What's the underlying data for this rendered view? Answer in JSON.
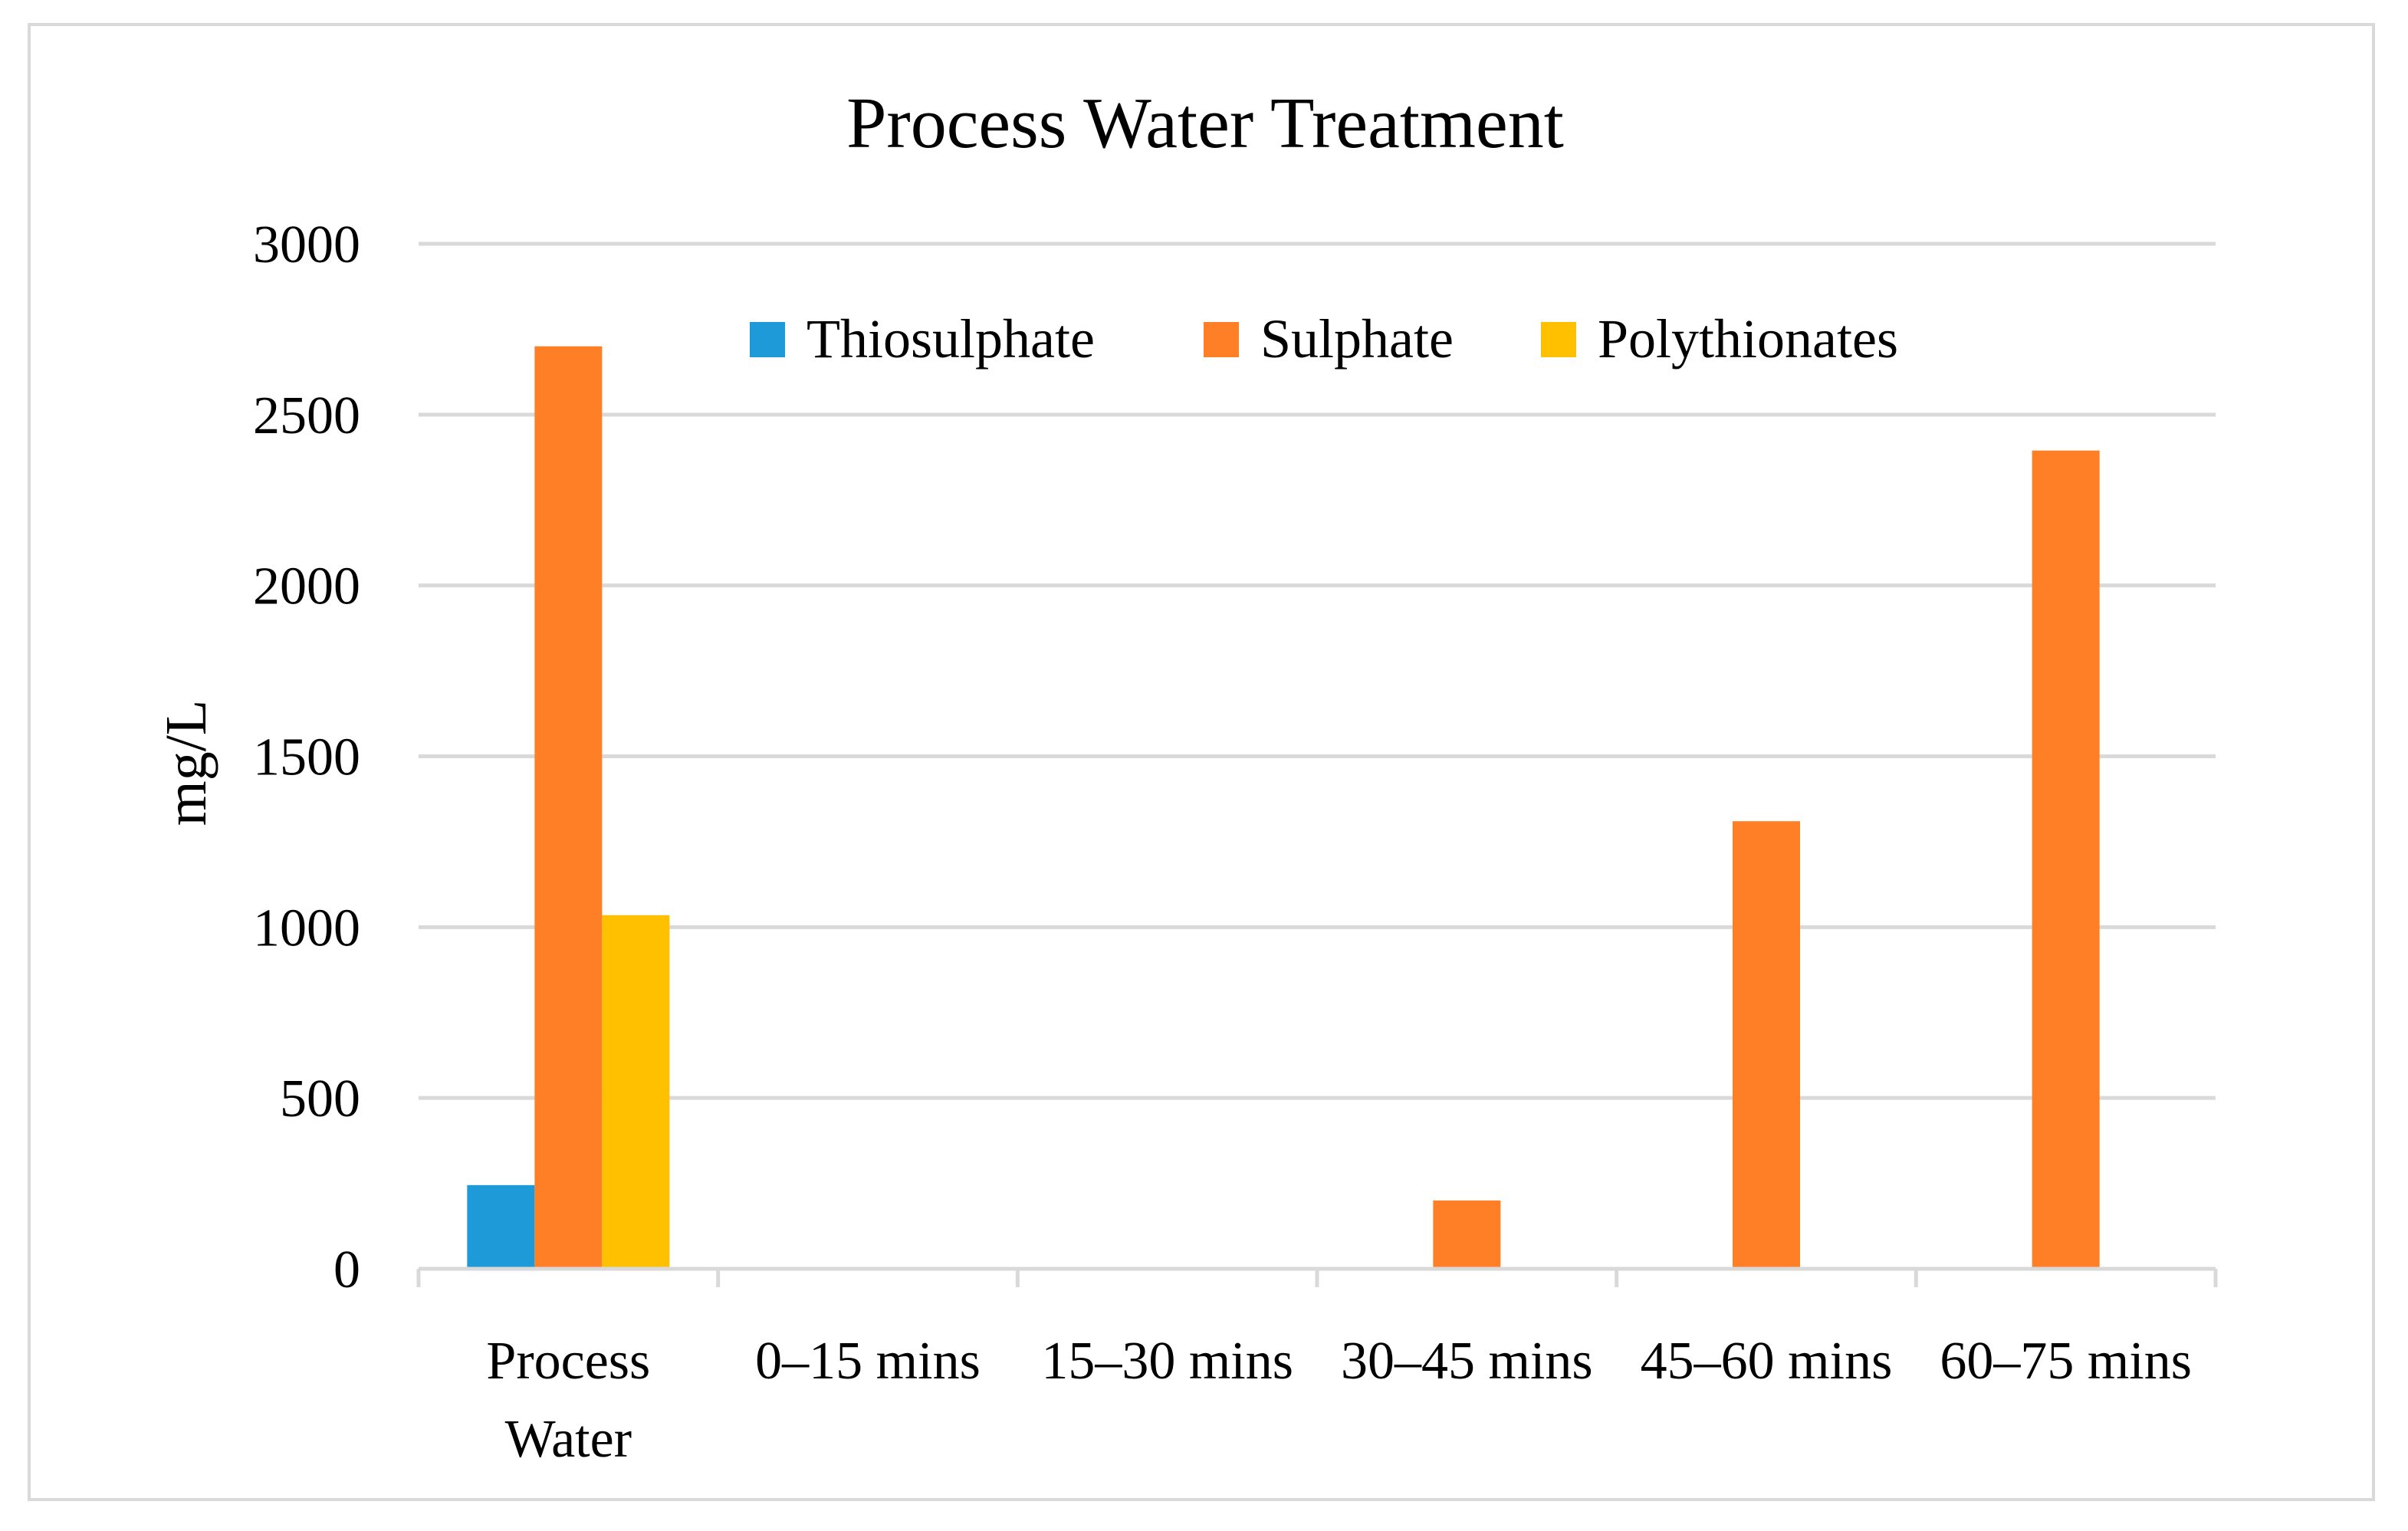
{
  "chart_data": {
    "type": "bar",
    "title": "Process Water Treatment",
    "xlabel": "",
    "ylabel": "mg/L",
    "ylim": [
      0,
      3000
    ],
    "yticks": [
      0,
      500,
      1000,
      1500,
      2000,
      2500,
      3000
    ],
    "grid": true,
    "legend_position": "top-right",
    "categories": [
      [
        "Process",
        "Water"
      ],
      [
        "0–15 mins"
      ],
      [
        "15–30 mins"
      ],
      [
        "30–45 mins"
      ],
      [
        "45–60 mins"
      ],
      [
        "60–75 mins"
      ]
    ],
    "series": [
      {
        "name": "Thiosulphate",
        "color": "#1f9ad9",
        "values": [
          245,
          0,
          0,
          0,
          0,
          0
        ]
      },
      {
        "name": "Sulphate",
        "color": "#ff7f27",
        "values": [
          2700,
          0,
          0,
          200,
          1310,
          2395
        ]
      },
      {
        "name": "Polythionates",
        "color": "#ffc000",
        "values": [
          1035,
          0,
          0,
          0,
          0,
          0
        ]
      }
    ]
  }
}
